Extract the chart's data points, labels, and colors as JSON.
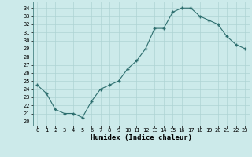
{
  "x": [
    0,
    1,
    2,
    3,
    4,
    5,
    6,
    7,
    8,
    9,
    10,
    11,
    12,
    13,
    14,
    15,
    16,
    17,
    18,
    19,
    20,
    21,
    22,
    23
  ],
  "y": [
    24.5,
    23.5,
    21.5,
    21.0,
    21.0,
    20.5,
    22.5,
    24.0,
    24.5,
    25.0,
    26.5,
    27.5,
    29.0,
    31.5,
    31.5,
    33.5,
    34.0,
    34.0,
    33.0,
    32.5,
    32.0,
    30.5,
    29.5,
    29.0
  ],
  "line_color": "#2d6e6e",
  "marker": "+",
  "bg_color": "#cceaea",
  "grid_color": "#aed4d4",
  "xlabel": "Humidex (Indice chaleur)",
  "ylabel_ticks": [
    20,
    21,
    22,
    23,
    24,
    25,
    26,
    27,
    28,
    29,
    30,
    31,
    32,
    33,
    34
  ],
  "ylim": [
    19.5,
    34.8
  ],
  "xlim": [
    -0.5,
    23.5
  ],
  "tick_fontsize": 5.0,
  "xlabel_fontsize": 6.5
}
